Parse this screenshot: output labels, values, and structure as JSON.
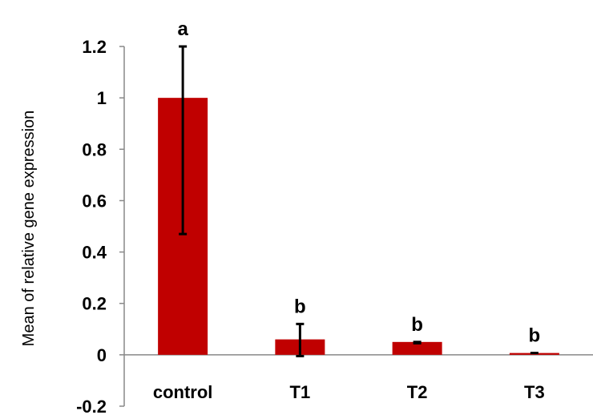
{
  "chart_data": {
    "type": "bar",
    "title": "",
    "xlabel": "",
    "ylabel": "Mean of relative gene expression",
    "categories": [
      "control",
      "T1",
      "T2",
      "T3"
    ],
    "values": [
      1.0,
      0.06,
      0.05,
      0.007
    ],
    "error_lower": [
      0.47,
      -0.005,
      0.045,
      0.007
    ],
    "error_upper": [
      1.2,
      0.12,
      0.05,
      0.007
    ],
    "significance_letters": [
      "a",
      "b",
      "b",
      "b"
    ],
    "ylim": [
      -0.2,
      1.2
    ],
    "yticks": [
      -0.2,
      0,
      0.2,
      0.4,
      0.6,
      0.8,
      1,
      1.2
    ],
    "ytick_labels": [
      "-0.2",
      "0",
      "0.2",
      "0.4",
      "0.6",
      "0.8",
      "1",
      "1.2"
    ],
    "grid": false,
    "legend": "none",
    "bar_color": "#c00000"
  }
}
